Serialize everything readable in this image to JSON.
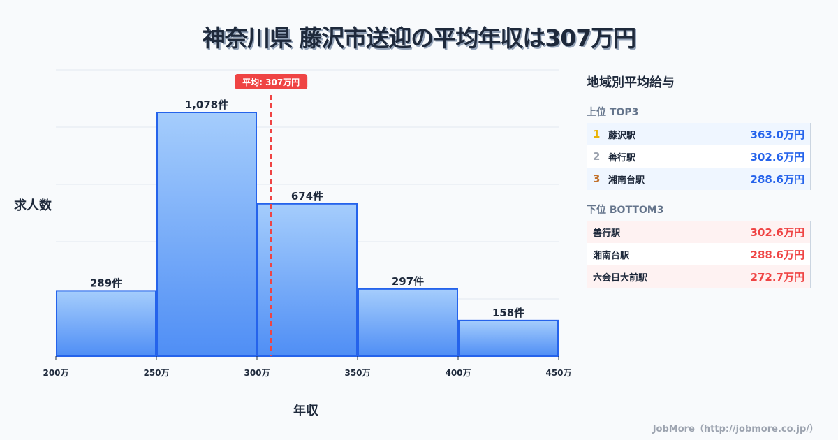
{
  "title": "神奈川県 藤沢市送迎の平均年収は307万円",
  "chart_data": {
    "type": "bar",
    "title": "神奈川県 藤沢市送迎の平均年収は307万円",
    "xlabel": "年収",
    "ylabel": "求人数",
    "categories": [
      "200万-250万",
      "250万-300万",
      "300万-350万",
      "350万-400万",
      "400万-450万"
    ],
    "bin_edges": [
      200,
      250,
      300,
      350,
      400,
      450
    ],
    "x_tick_labels": [
      "200万",
      "250万",
      "300万",
      "350万",
      "400万",
      "450万"
    ],
    "values": [
      289,
      1078,
      674,
      297,
      158
    ],
    "value_labels": [
      "289件",
      "1,078件",
      "674件",
      "297件",
      "158件"
    ],
    "xlim": [
      200,
      450
    ],
    "grid": true,
    "average": {
      "value": 307,
      "label": "平均: 307万円",
      "color": "#ef4444"
    },
    "bar_color_top": "#a5cdfc",
    "bar_color_bottom": "#4f8ef5",
    "bar_border": "#2563eb"
  },
  "sidebar": {
    "title": "地域別平均給与",
    "top": {
      "label": "上位 TOP3",
      "items": [
        {
          "rank": "1",
          "name": "藤沢駅",
          "value": "363.0万円",
          "rank_color": "#eab308"
        },
        {
          "rank": "2",
          "name": "善行駅",
          "value": "302.6万円",
          "rank_color": "#9ca3af"
        },
        {
          "rank": "3",
          "name": "湘南台駅",
          "value": "288.6万円",
          "rank_color": "#c2732e"
        }
      ]
    },
    "bottom": {
      "label": "下位 BOTTOM3",
      "items": [
        {
          "name": "善行駅",
          "value": "302.6万円"
        },
        {
          "name": "湘南台駅",
          "value": "288.6万円"
        },
        {
          "name": "六会日大前駅",
          "value": "272.7万円"
        }
      ]
    }
  },
  "footer": "JobMore（http://jobmore.co.jp/）"
}
